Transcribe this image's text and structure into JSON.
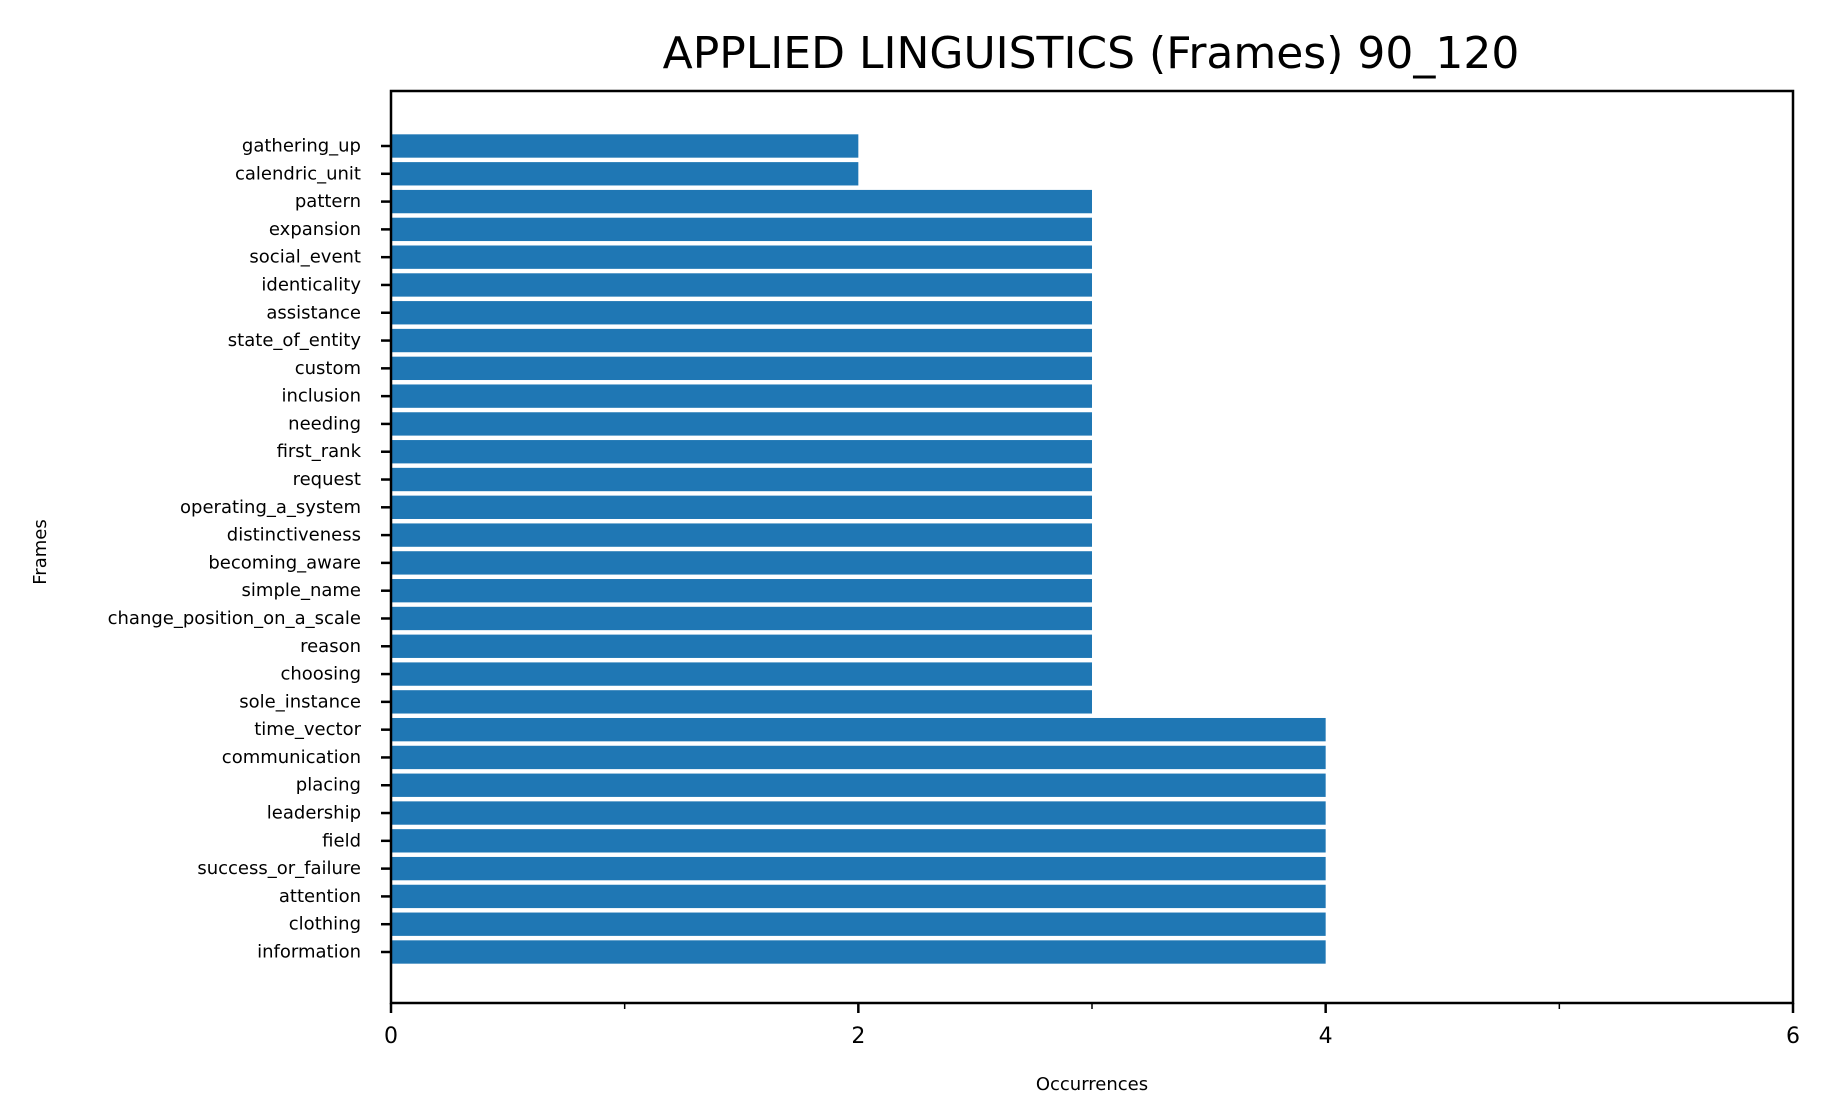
{
  "chart_data": {
    "type": "bar",
    "orientation": "horizontal",
    "title": "APPLIED LINGUISTICS (Frames) 90_120",
    "xlabel": "Occurrences",
    "ylabel": "Frames",
    "xlim": [
      0,
      6
    ],
    "xticks": [
      0,
      2,
      4,
      6
    ],
    "xticks_minor": [
      1,
      3,
      5
    ],
    "bar_color": "#1f77b4",
    "grid": false,
    "categories": [
      "gathering_up",
      "calendric_unit",
      "pattern",
      "expansion",
      "social_event",
      "identicality",
      "assistance",
      "state_of_entity",
      "custom",
      "inclusion",
      "needing",
      "first_rank",
      "request",
      "operating_a_system",
      "distinctiveness",
      "becoming_aware",
      "simple_name",
      "change_position_on_a_scale",
      "reason",
      "choosing",
      "sole_instance",
      "time_vector",
      "communication",
      "placing",
      "leadership",
      "field",
      "success_or_failure",
      "attention",
      "clothing",
      "information"
    ],
    "values": [
      2,
      2,
      3,
      3,
      3,
      3,
      3,
      3,
      3,
      3,
      3,
      3,
      3,
      3,
      3,
      3,
      3,
      3,
      3,
      3,
      3,
      4,
      4,
      4,
      4,
      4,
      4,
      4,
      4,
      4
    ]
  }
}
